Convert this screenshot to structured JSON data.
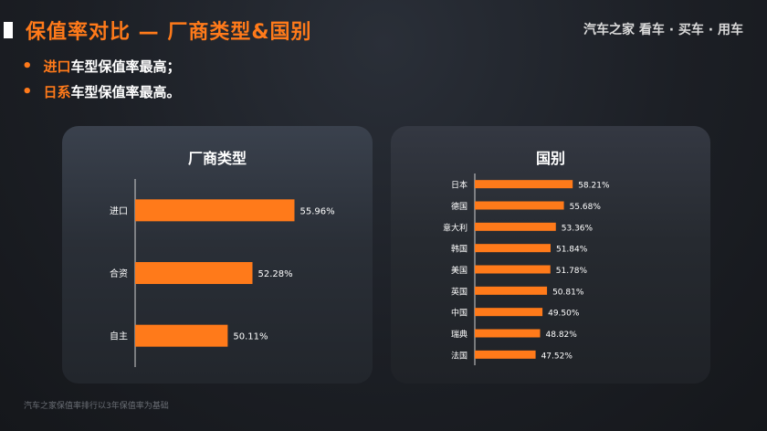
{
  "header": {
    "title": "保值率对比 — 厂商类型&国别",
    "brand": "汽车之家 看车 · 买车 · 用车"
  },
  "bullets": [
    {
      "highlight": "进口",
      "rest": "车型保值率最高；"
    },
    {
      "highlight": "日系",
      "rest": "车型保值率最高。"
    }
  ],
  "footnote": "汽车之家保值率排行以3年保值率为基础",
  "colors": {
    "accent": "#ff7a1a",
    "bar": "#ff7a1a"
  },
  "chart_data": [
    {
      "type": "bar",
      "orientation": "horizontal",
      "title": "厂商类型",
      "categories": [
        "进口",
        "合资",
        "自主"
      ],
      "values": [
        55.96,
        52.28,
        50.11
      ],
      "labels": [
        "55.96%",
        "52.28%",
        "50.11%"
      ],
      "grid": false
    },
    {
      "type": "bar",
      "orientation": "horizontal",
      "title": "国别",
      "categories": [
        "日本",
        "德国",
        "意大利",
        "韩国",
        "美国",
        "英国",
        "中国",
        "瑞典",
        "法国"
      ],
      "values": [
        58.21,
        55.68,
        53.36,
        51.84,
        51.78,
        50.81,
        49.5,
        48.82,
        47.52
      ],
      "labels": [
        "58.21%",
        "55.68%",
        "53.36%",
        "51.84%",
        "51.78%",
        "50.81%",
        "49.50%",
        "48.82%",
        "47.52%"
      ],
      "grid": false
    }
  ]
}
